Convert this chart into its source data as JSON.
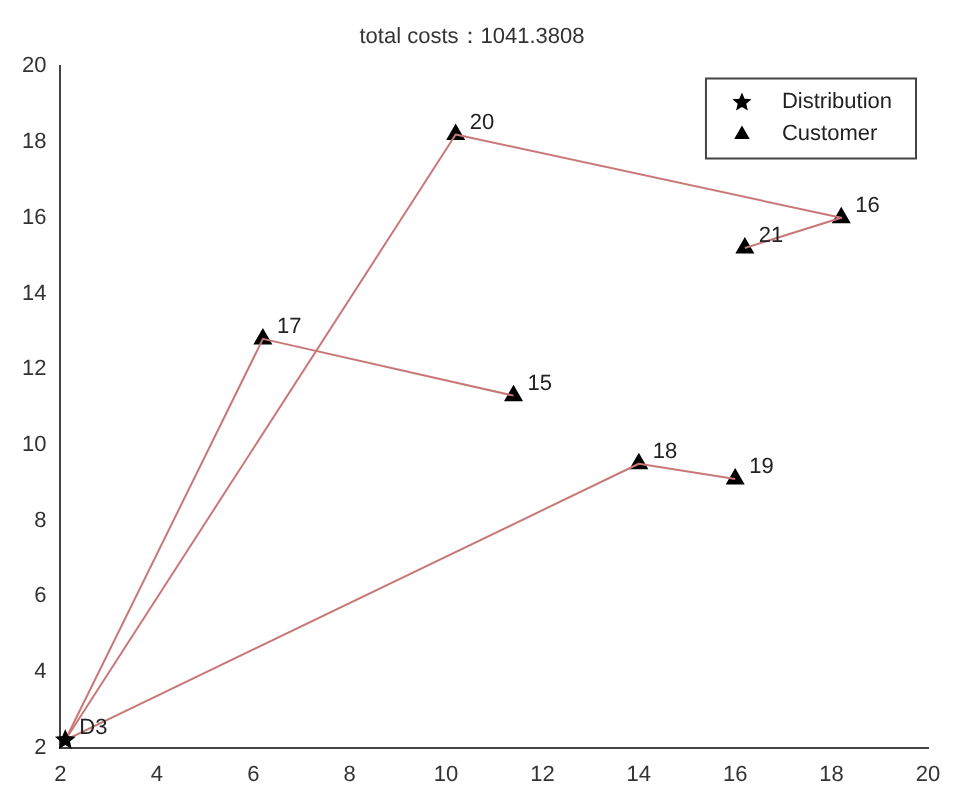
{
  "chart_data": {
    "type": "scatter",
    "title": "total costs：1041.3808",
    "xlim": [
      2,
      20
    ],
    "ylim": [
      2,
      20
    ],
    "xticks": [
      2,
      4,
      6,
      8,
      10,
      12,
      14,
      16,
      18,
      20
    ],
    "yticks": [
      2,
      4,
      6,
      8,
      10,
      12,
      14,
      16,
      18,
      20
    ],
    "grid": false,
    "legend": "top right",
    "series": [
      {
        "type": "line",
        "color": "#c87878",
        "marker": "none",
        "x": [
          2.1,
          10.2,
          18.2,
          16.2
        ],
        "values": [
          2.2,
          18.2,
          16.0,
          15.2
        ]
      },
      {
        "type": "line",
        "color": "#c87878",
        "marker": "none",
        "x": [
          2.1,
          6.2,
          11.4
        ],
        "values": [
          2.2,
          12.8,
          11.3
        ]
      },
      {
        "type": "line",
        "color": "#c87878",
        "marker": "none",
        "x": [
          2.1,
          14.0,
          16.0
        ],
        "values": [
          2.2,
          9.5,
          9.1
        ]
      },
      {
        "name": "Distribution",
        "color": "#000000",
        "marker": "star",
        "x": [
          2.1
        ],
        "values": [
          2.2
        ]
      },
      {
        "name": "Customer",
        "color": "#000000",
        "marker": "triangle",
        "x": [
          10.2,
          18.2,
          16.2,
          6.2,
          11.4,
          14.0,
          16.0
        ],
        "values": [
          18.2,
          16.0,
          15.2,
          12.8,
          11.3,
          9.5,
          9.1
        ]
      }
    ],
    "annotations": [
      {
        "text": "D3",
        "x": 2.1,
        "y": 2.2
      },
      {
        "text": "20",
        "x": 10.2,
        "y": 18.2
      },
      {
        "text": "16",
        "x": 18.2,
        "y": 16.0
      },
      {
        "text": "21",
        "x": 16.2,
        "y": 15.2
      },
      {
        "text": "17",
        "x": 6.2,
        "y": 12.8
      },
      {
        "text": "15",
        "x": 11.4,
        "y": 11.3
      },
      {
        "text": "18",
        "x": 14.0,
        "y": 9.5
      },
      {
        "text": "19",
        "x": 16.0,
        "y": 9.1
      }
    ]
  }
}
